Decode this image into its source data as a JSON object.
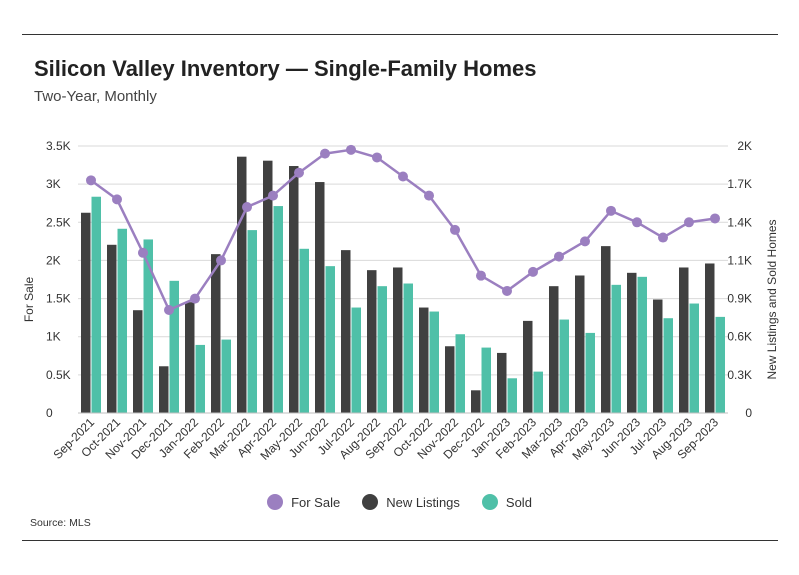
{
  "header": {
    "title": "Silicon Valley Inventory — Single-Family Homes",
    "subtitle": "Two-Year, Monthly"
  },
  "footer": {
    "source": "Source: MLS"
  },
  "colors": {
    "for_sale": "#9b7fc0",
    "new_listings": "#404040",
    "sold": "#4fc0a8",
    "grid": "#d9d9d9"
  },
  "chart_data": {
    "type": "bar",
    "title": "Silicon Valley Inventory — Single-Family Homes",
    "subtitle": "Two-Year, Monthly",
    "categories": [
      "Sep-2021",
      "Oct-2021",
      "Nov-2021",
      "Dec-2021",
      "Jan-2022",
      "Feb-2022",
      "Mar-2022",
      "Apr-2022",
      "May-2022",
      "Jun-2022",
      "Jul-2022",
      "Aug-2022",
      "Sep-2022",
      "Oct-2022",
      "Nov-2022",
      "Dec-2022",
      "Jan-2023",
      "Feb-2023",
      "Mar-2023",
      "Apr-2023",
      "May-2023",
      "Jun-2023",
      "Jul-2023",
      "Aug-2023",
      "Sep-2023"
    ],
    "ylabel_left": "For Sale",
    "ylabel_right": "New Listings and Sold Homes",
    "ylim_left": [
      0,
      3500
    ],
    "ylim_right": [
      0,
      2000
    ],
    "yticks_left": [
      "0",
      "0.5K",
      "1K",
      "1.5K",
      "2K",
      "2.5K",
      "3K",
      "3.5K"
    ],
    "yticks_right": [
      "0",
      "0.3K",
      "0.6K",
      "0.9K",
      "1.1K",
      "1.4K",
      "1.7K",
      "2K"
    ],
    "grid": true,
    "legend_position": "bottom",
    "series": [
      {
        "name": "For Sale",
        "kind": "line",
        "axis": "left",
        "values": [
          3050,
          2800,
          2100,
          1350,
          1500,
          2000,
          2700,
          2850,
          3150,
          3400,
          3450,
          3350,
          3100,
          2850,
          2400,
          1800,
          1600,
          1850,
          2050,
          2250,
          2650,
          2500,
          2300,
          2500,
          2550
        ]
      },
      {
        "name": "New Listings",
        "kind": "bar",
        "axis": "right",
        "values": [
          1500,
          1260,
          770,
          350,
          830,
          1190,
          1920,
          1890,
          1850,
          1730,
          1220,
          1070,
          1090,
          790,
          500,
          170,
          450,
          690,
          950,
          1030,
          1250,
          1050,
          850,
          1090,
          1120
        ]
      },
      {
        "name": "Sold",
        "kind": "bar",
        "axis": "right",
        "values": [
          1620,
          1380,
          1300,
          990,
          510,
          550,
          1370,
          1550,
          1230,
          1100,
          790,
          950,
          970,
          760,
          590,
          490,
          260,
          310,
          700,
          600,
          960,
          1020,
          710,
          820,
          720
        ]
      }
    ]
  }
}
